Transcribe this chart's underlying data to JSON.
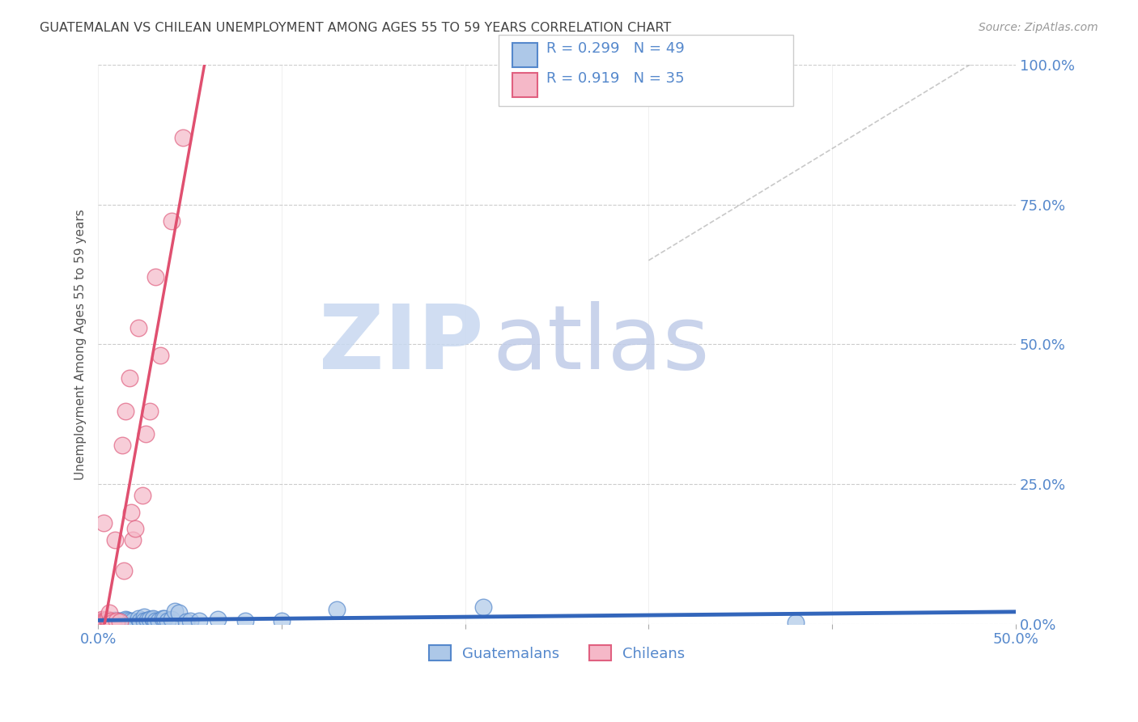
{
  "title": "GUATEMALAN VS CHILEAN UNEMPLOYMENT AMONG AGES 55 TO 59 YEARS CORRELATION CHART",
  "source": "Source: ZipAtlas.com",
  "ylabel": "Unemployment Among Ages 55 to 59 years",
  "ytick_labels": [
    "0.0%",
    "25.0%",
    "50.0%",
    "75.0%",
    "100.0%"
  ],
  "ytick_values": [
    0.0,
    0.25,
    0.5,
    0.75,
    1.0
  ],
  "xtick_values": [
    0.0,
    0.1,
    0.2,
    0.3,
    0.4,
    0.5
  ],
  "xtick_labels": [
    "0.0%",
    "",
    "",
    "",
    "",
    "50.0%"
  ],
  "xlim": [
    0.0,
    0.5
  ],
  "ylim": [
    0.0,
    1.0
  ],
  "guatemalan_R": 0.299,
  "guatemalan_N": 49,
  "chilean_R": 0.919,
  "chilean_N": 35,
  "guatemalan_color": "#adc8e8",
  "guatemalan_edge_color": "#5588cc",
  "guatemalan_line_color": "#3366bb",
  "chilean_color": "#f5b8c8",
  "chilean_edge_color": "#e06080",
  "chilean_line_color": "#e05070",
  "background_color": "#ffffff",
  "grid_color": "#cccccc",
  "watermark_zip": "ZIP",
  "watermark_atlas": "atlas",
  "watermark_color_zip": "#c8d8f0",
  "watermark_color_atlas": "#c0cce8",
  "title_color": "#444444",
  "axis_label_color": "#5588cc",
  "legend_border_color": "#cccccc",
  "guatemalan_x": [
    0.001,
    0.002,
    0.003,
    0.003,
    0.004,
    0.004,
    0.004,
    0.005,
    0.005,
    0.005,
    0.006,
    0.007,
    0.007,
    0.008,
    0.008,
    0.009,
    0.01,
    0.011,
    0.012,
    0.013,
    0.015,
    0.016,
    0.017,
    0.019,
    0.022,
    0.023,
    0.025,
    0.025,
    0.027,
    0.028,
    0.03,
    0.03,
    0.031,
    0.033,
    0.035,
    0.036,
    0.038,
    0.04,
    0.042,
    0.044,
    0.048,
    0.05,
    0.055,
    0.065,
    0.08,
    0.1,
    0.13,
    0.21,
    0.38
  ],
  "guatemalan_y": [
    0.005,
    0.005,
    0.003,
    0.005,
    0.004,
    0.005,
    0.006,
    0.003,
    0.004,
    0.005,
    0.005,
    0.003,
    0.005,
    0.002,
    0.006,
    0.007,
    0.004,
    0.005,
    0.005,
    0.005,
    0.008,
    0.007,
    0.006,
    0.005,
    0.01,
    0.006,
    0.012,
    0.005,
    0.007,
    0.008,
    0.008,
    0.01,
    0.006,
    0.005,
    0.01,
    0.01,
    0.006,
    0.008,
    0.022,
    0.02,
    0.004,
    0.006,
    0.005,
    0.008,
    0.006,
    0.005,
    0.025,
    0.03,
    0.003
  ],
  "chilean_x": [
    0.001,
    0.001,
    0.002,
    0.002,
    0.003,
    0.003,
    0.003,
    0.004,
    0.004,
    0.005,
    0.005,
    0.005,
    0.006,
    0.006,
    0.007,
    0.007,
    0.008,
    0.009,
    0.01,
    0.012,
    0.013,
    0.014,
    0.015,
    0.017,
    0.018,
    0.019,
    0.02,
    0.022,
    0.024,
    0.026,
    0.028,
    0.031,
    0.034,
    0.04,
    0.046
  ],
  "chilean_y": [
    0.003,
    0.005,
    0.005,
    0.008,
    0.003,
    0.005,
    0.18,
    0.004,
    0.006,
    0.003,
    0.005,
    0.008,
    0.006,
    0.02,
    0.004,
    0.006,
    0.003,
    0.15,
    0.005,
    0.004,
    0.32,
    0.095,
    0.38,
    0.44,
    0.2,
    0.15,
    0.17,
    0.53,
    0.23,
    0.34,
    0.38,
    0.62,
    0.48,
    0.72,
    0.87
  ]
}
